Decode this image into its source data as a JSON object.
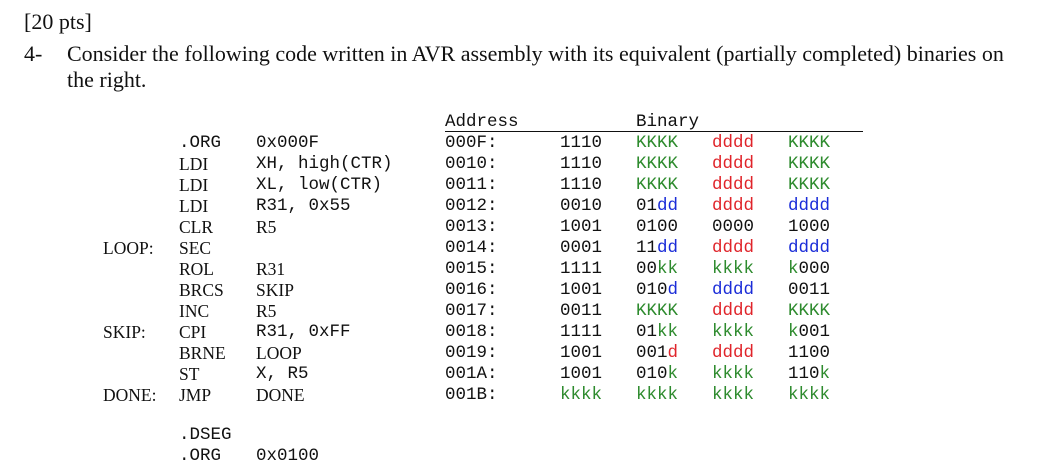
{
  "header": {
    "points": "[20 pts]",
    "number": "4-",
    "text": "Consider the following code written in AVR assembly with its equivalent (partially completed) binaries on the right."
  },
  "colors": {
    "black": "#111111",
    "green": "#2e8b2e",
    "red": "#e0242a",
    "blue": "#1a2cd8"
  },
  "table_headers": {
    "address": "Address",
    "binary": "Binary"
  },
  "code": [
    {
      "label": "",
      "op": ".ORG",
      "arg": "0x000F"
    },
    {
      "label": "",
      "op": "LDI",
      "arg": "XH, high(CTR)"
    },
    {
      "label": "",
      "op": "LDI",
      "arg": "XL, low(CTR)"
    },
    {
      "label": "",
      "op": "LDI",
      "arg": "R31, 0x55"
    },
    {
      "label": "",
      "op": "CLR",
      "arg": "R5"
    },
    {
      "label": "LOOP:",
      "op": "SEC",
      "arg": ""
    },
    {
      "label": "",
      "op": "ROL",
      "arg": "R31"
    },
    {
      "label": "",
      "op": "BRCS",
      "arg": "SKIP"
    },
    {
      "label": "",
      "op": "INC",
      "arg": "R5"
    },
    {
      "label": "SKIP:",
      "op": "CPI",
      "arg": "R31, 0xFF"
    },
    {
      "label": "",
      "op": "BRNE",
      "arg": "LOOP"
    },
    {
      "label": "",
      "op": "ST",
      "arg": "X, R5"
    },
    {
      "label": "DONE:",
      "op": "JMP",
      "arg": "DONE"
    }
  ],
  "code_footer": [
    {
      "op": ".DSEG",
      "arg": ""
    },
    {
      "op": ".ORG",
      "arg": "0x0100"
    }
  ],
  "binary_rows": [
    {
      "address": "000F:",
      "groups": [
        [
          [
            "1110",
            "black"
          ]
        ],
        [
          [
            "KKKK",
            "green"
          ]
        ],
        [
          [
            "dddd",
            "red"
          ]
        ],
        [
          [
            "KKKK",
            "green"
          ]
        ]
      ]
    },
    {
      "address": "0010:",
      "groups": [
        [
          [
            "1110",
            "black"
          ]
        ],
        [
          [
            "KKKK",
            "green"
          ]
        ],
        [
          [
            "dddd",
            "red"
          ]
        ],
        [
          [
            "KKKK",
            "green"
          ]
        ]
      ]
    },
    {
      "address": "0011:",
      "groups": [
        [
          [
            "1110",
            "black"
          ]
        ],
        [
          [
            "KKKK",
            "green"
          ]
        ],
        [
          [
            "dddd",
            "red"
          ]
        ],
        [
          [
            "KKKK",
            "green"
          ]
        ]
      ]
    },
    {
      "address": "0012:",
      "groups": [
        [
          [
            "0010",
            "black"
          ]
        ],
        [
          [
            "01",
            "black"
          ],
          [
            "dd",
            "blue"
          ]
        ],
        [
          [
            "dddd",
            "red"
          ]
        ],
        [
          [
            "dddd",
            "blue"
          ]
        ]
      ]
    },
    {
      "address": "0013:",
      "groups": [
        [
          [
            "1001",
            "black"
          ]
        ],
        [
          [
            "0100",
            "black"
          ]
        ],
        [
          [
            "0000",
            "black"
          ]
        ],
        [
          [
            "1000",
            "black"
          ]
        ]
      ]
    },
    {
      "address": "0014:",
      "groups": [
        [
          [
            "0001",
            "black"
          ]
        ],
        [
          [
            "11",
            "black"
          ],
          [
            "dd",
            "blue"
          ]
        ],
        [
          [
            "dddd",
            "red"
          ]
        ],
        [
          [
            "dddd",
            "blue"
          ]
        ]
      ]
    },
    {
      "address": "0015:",
      "groups": [
        [
          [
            "1111",
            "black"
          ]
        ],
        [
          [
            "00",
            "black"
          ],
          [
            "kk",
            "green"
          ]
        ],
        [
          [
            "kkkk",
            "green"
          ]
        ],
        [
          [
            "k",
            "green"
          ],
          [
            "000",
            "black"
          ]
        ]
      ]
    },
    {
      "address": "0016:",
      "groups": [
        [
          [
            "1001",
            "black"
          ]
        ],
        [
          [
            "010",
            "black"
          ],
          [
            "d",
            "blue"
          ]
        ],
        [
          [
            "dddd",
            "blue"
          ]
        ],
        [
          [
            "0011",
            "black"
          ]
        ]
      ]
    },
    {
      "address": "0017:",
      "groups": [
        [
          [
            "0011",
            "black"
          ]
        ],
        [
          [
            "KKKK",
            "green"
          ]
        ],
        [
          [
            "dddd",
            "red"
          ]
        ],
        [
          [
            "KKKK",
            "green"
          ]
        ]
      ]
    },
    {
      "address": "0018:",
      "groups": [
        [
          [
            "1111",
            "black"
          ]
        ],
        [
          [
            "01",
            "black"
          ],
          [
            "kk",
            "green"
          ]
        ],
        [
          [
            "kkkk",
            "green"
          ]
        ],
        [
          [
            "k",
            "green"
          ],
          [
            "001",
            "black"
          ]
        ]
      ]
    },
    {
      "address": "0019:",
      "groups": [
        [
          [
            "1001",
            "black"
          ]
        ],
        [
          [
            "001",
            "black"
          ],
          [
            "d",
            "red"
          ]
        ],
        [
          [
            "dddd",
            "red"
          ]
        ],
        [
          [
            "1100",
            "black"
          ]
        ]
      ]
    },
    {
      "address": "001A:",
      "groups": [
        [
          [
            "1001",
            "black"
          ]
        ],
        [
          [
            "010",
            "black"
          ],
          [
            "k",
            "green"
          ]
        ],
        [
          [
            "kkkk",
            "green"
          ]
        ],
        [
          [
            "110",
            "black"
          ],
          [
            "k",
            "green"
          ]
        ]
      ]
    },
    {
      "address": "001B:",
      "groups": [
        [
          [
            "kkkk",
            "green"
          ]
        ],
        [
          [
            "kkkk",
            "green"
          ]
        ],
        [
          [
            "kkkk",
            "green"
          ]
        ],
        [
          [
            "kkkk",
            "green"
          ]
        ]
      ]
    }
  ]
}
